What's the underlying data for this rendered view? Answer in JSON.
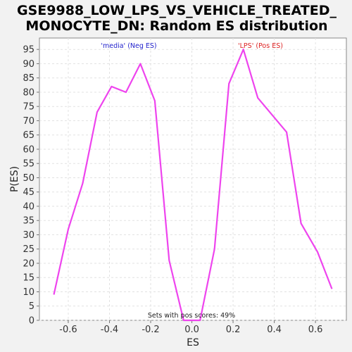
{
  "chart_data": {
    "type": "line",
    "title_line1": "GSE9988_LOW_LPS_VS_VEHICLE_TREATED_",
    "title_line2": "MONOCYTE_DN: Random ES distribution",
    "xlabel": "ES",
    "ylabel": "P(ES)",
    "xlim": [
      -0.74,
      0.75
    ],
    "ylim": [
      0,
      99
    ],
    "xticks": [
      -0.6,
      -0.4,
      -0.2,
      0.0,
      0.2,
      0.4,
      0.6
    ],
    "xtick_labels": [
      "-0.6",
      "-0.4",
      "-0.2",
      "0.0",
      "0.2",
      "0.4",
      "0.6"
    ],
    "yticks": [
      0,
      5,
      10,
      15,
      20,
      25,
      30,
      35,
      40,
      45,
      50,
      55,
      60,
      65,
      70,
      75,
      80,
      85,
      90,
      95
    ],
    "grid": true,
    "series": [
      {
        "color": "#ee44ee",
        "x": [
          -0.67,
          -0.6,
          -0.53,
          -0.46,
          -0.39,
          -0.32,
          -0.25,
          -0.18,
          -0.11,
          -0.04,
          0.04,
          0.11,
          0.18,
          0.25,
          0.32,
          0.39,
          0.46,
          0.53,
          0.61,
          0.68
        ],
        "y": [
          9,
          32,
          48,
          73,
          82,
          80,
          90,
          77,
          21,
          0,
          0,
          25,
          83,
          95,
          78,
          72,
          66,
          34,
          24,
          11
        ]
      }
    ],
    "annotations": {
      "neg_label": "'media' (Neg ES)",
      "pos_label": "'LPS' (Pos ES)",
      "footer": "Sets with pos scores: 49%",
      "neg_color": "#2222cc",
      "pos_color": "#dd2222"
    }
  }
}
